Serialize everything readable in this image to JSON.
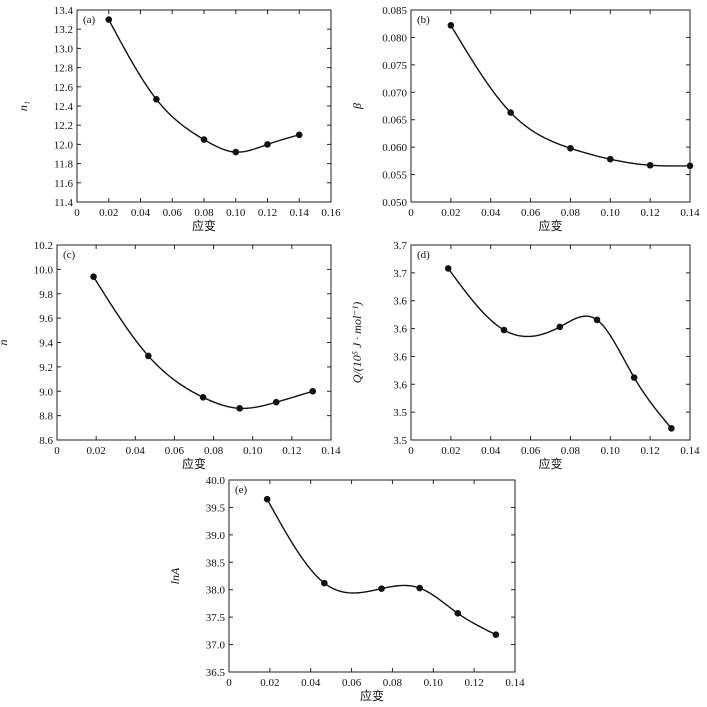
{
  "chart_data": [
    {
      "panel": "(a)",
      "type": "scatter",
      "xlabel": "应变",
      "ylabel": "n₁",
      "x": [
        0.02,
        0.05,
        0.08,
        0.1,
        0.12,
        0.14
      ],
      "y": [
        13.3,
        12.47,
        12.05,
        11.92,
        12.0,
        12.1
      ],
      "xlim": [
        0,
        0.16
      ],
      "ylim": [
        11.4,
        13.4
      ],
      "xticks": [
        "0",
        "0.02",
        "0.04",
        "0.06",
        "0.08",
        "0.10",
        "0.12",
        "0.14",
        "0.16"
      ],
      "yticks": [
        "11.4",
        "11.6",
        "11.8",
        "12.0",
        "12.2",
        "12.4",
        "12.6",
        "12.8",
        "13.0",
        "13.2",
        "13.4"
      ]
    },
    {
      "panel": "(b)",
      "type": "scatter",
      "xlabel": "应变",
      "ylabel": "β",
      "x": [
        0.02,
        0.05,
        0.08,
        0.1,
        0.12,
        0.14
      ],
      "y": [
        0.0822,
        0.0663,
        0.0598,
        0.0578,
        0.0567,
        0.0566
      ],
      "xlim": [
        0,
        0.14
      ],
      "ylim": [
        0.05,
        0.085
      ],
      "xticks": [
        "0",
        "0.02",
        "0.04",
        "0.06",
        "0.08",
        "0.10",
        "0.12",
        "0.14"
      ],
      "yticks": [
        "0.050",
        "0.055",
        "0.060",
        "0.065",
        "0.070",
        "0.075",
        "0.080",
        "0.085"
      ]
    },
    {
      "panel": "(c)",
      "type": "scatter",
      "xlabel": "应变",
      "ylabel": "n",
      "x": [
        0.02,
        0.05,
        0.08,
        0.1,
        0.12,
        0.14
      ],
      "y": [
        9.94,
        9.29,
        8.95,
        8.86,
        8.91,
        9.0
      ],
      "xlim": [
        0,
        0.15
      ],
      "ylim": [
        8.6,
        10.2
      ],
      "xticks": [
        "0",
        "0.02",
        "0.04",
        "0.06",
        "0.08",
        "0.10",
        "0.12",
        "0.14"
      ],
      "yticks": [
        "8.6",
        "8.8",
        "9.0",
        "9.2",
        "9.4",
        "9.6",
        "9.8",
        "10.0",
        "10.2"
      ]
    },
    {
      "panel": "(d)",
      "type": "scatter",
      "xlabel": "应变",
      "ylabel": "Q/(10⁵ J · mol⁻¹)",
      "x": [
        0.02,
        0.05,
        0.08,
        0.1,
        0.12,
        0.14
      ],
      "y": [
        3.7,
        3.621,
        3.625,
        3.634,
        3.56,
        3.495
      ],
      "xlim": [
        0,
        0.15
      ],
      "ylim": [
        3.48,
        3.73
      ],
      "xticks": [
        "0",
        "0.02",
        "0.04",
        "0.06",
        "0.08",
        "0.10",
        "0.12",
        "0.14"
      ],
      "yticks": [
        "3.5",
        "3.5",
        "3.6",
        "3.6",
        "3.6",
        "3.6",
        "3.7",
        "3.7"
      ]
    },
    {
      "panel": "(e)",
      "type": "scatter",
      "xlabel": "应变",
      "ylabel": "lnA",
      "x": [
        0.02,
        0.05,
        0.08,
        0.1,
        0.12,
        0.14
      ],
      "y": [
        39.65,
        38.12,
        38.02,
        38.03,
        37.57,
        37.18
      ],
      "xlim": [
        0,
        0.15
      ],
      "ylim": [
        36.5,
        40.0
      ],
      "xticks": [
        "0",
        "0.02",
        "0.04",
        "0.06",
        "0.08",
        "0.10",
        "0.12",
        "0.14"
      ],
      "yticks": [
        "36.5",
        "37.0",
        "37.5",
        "38.0",
        "38.5",
        "39.0",
        "39.5",
        "40.0"
      ]
    }
  ]
}
